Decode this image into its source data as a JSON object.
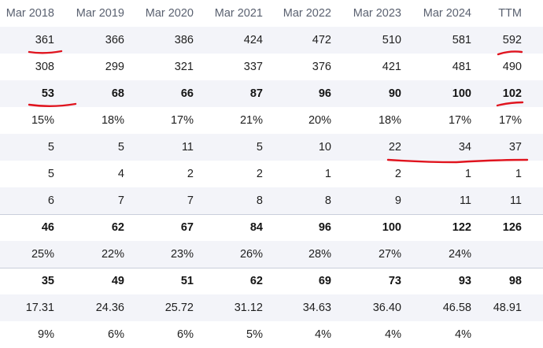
{
  "columns": [
    "Mar 2018",
    "Mar 2019",
    "Mar 2020",
    "Mar 2021",
    "Mar 2022",
    "Mar 2023",
    "Mar 2024",
    "TTM"
  ],
  "rows": [
    {
      "bold": false,
      "alt": true,
      "values": [
        "361",
        "366",
        "386",
        "424",
        "472",
        "510",
        "581",
        "592"
      ]
    },
    {
      "bold": false,
      "alt": false,
      "values": [
        "308",
        "299",
        "321",
        "337",
        "376",
        "421",
        "481",
        "490"
      ]
    },
    {
      "bold": true,
      "alt": true,
      "values": [
        "53",
        "68",
        "66",
        "87",
        "96",
        "90",
        "100",
        "102"
      ]
    },
    {
      "bold": false,
      "alt": false,
      "values": [
        "15%",
        "18%",
        "17%",
        "21%",
        "20%",
        "18%",
        "17%",
        "17%"
      ]
    },
    {
      "bold": false,
      "alt": true,
      "values": [
        "5",
        "5",
        "11",
        "5",
        "10",
        "22",
        "34",
        "37"
      ]
    },
    {
      "bold": false,
      "alt": false,
      "values": [
        "5",
        "4",
        "2",
        "2",
        "1",
        "2",
        "1",
        "1"
      ]
    },
    {
      "bold": false,
      "alt": true,
      "values": [
        "6",
        "7",
        "7",
        "8",
        "8",
        "9",
        "11",
        "11"
      ]
    },
    {
      "bold": true,
      "alt": false,
      "values": [
        "46",
        "62",
        "67",
        "84",
        "96",
        "100",
        "122",
        "126"
      ]
    },
    {
      "bold": false,
      "alt": true,
      "values": [
        "25%",
        "22%",
        "23%",
        "26%",
        "28%",
        "27%",
        "24%",
        ""
      ]
    },
    {
      "bold": true,
      "alt": false,
      "values": [
        "35",
        "49",
        "51",
        "62",
        "69",
        "73",
        "93",
        "98"
      ]
    },
    {
      "bold": false,
      "alt": true,
      "values": [
        "17.31",
        "24.36",
        "25.72",
        "31.12",
        "34.63",
        "36.40",
        "46.58",
        "48.91"
      ]
    },
    {
      "bold": false,
      "alt": false,
      "values": [
        "9%",
        "6%",
        "6%",
        "5%",
        "4%",
        "4%",
        "4%",
        ""
      ]
    }
  ],
  "annotation_color": "#e0141e"
}
